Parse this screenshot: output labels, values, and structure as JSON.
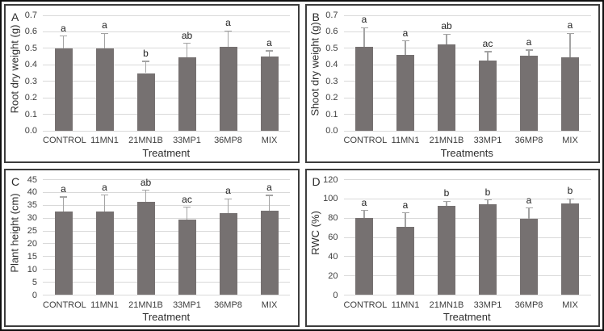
{
  "figure": {
    "description": "Four-panel bar chart figure comparing plant growth parameters across bacterial inoculation treatments",
    "panel_labels": [
      "A",
      "B",
      "C",
      "D"
    ]
  },
  "colors": {
    "bar": "#767171",
    "error": "#a3a3a3",
    "grid": "#d9d9d9",
    "tick_text": "#404040",
    "outer_border": "#101010",
    "panel_border": "#3d3d3d"
  },
  "chart_data": [
    {
      "type": "bar",
      "panel_label": "A",
      "title": "",
      "ylabel": "Root dry weight (g)",
      "xlabel": "Treatment",
      "categories": [
        "CONTROL",
        "11MN1",
        "21MN1B",
        "33MP1",
        "36MP8",
        "MIX"
      ],
      "values": [
        0.5,
        0.5,
        0.35,
        0.445,
        0.51,
        0.45
      ],
      "errors": [
        0.075,
        0.09,
        0.07,
        0.085,
        0.095,
        0.035
      ],
      "sig_letters": [
        "a",
        "a",
        "b",
        "ab",
        "a",
        "a"
      ],
      "ylim": [
        0,
        0.7
      ],
      "ytick_step": 0.1,
      "ytick_decimals": 1,
      "grid": true,
      "legend": "none"
    },
    {
      "type": "bar",
      "panel_label": "B",
      "title": "",
      "ylabel": "Shoot dry weight (g)",
      "xlabel": "Treatments",
      "categories": [
        "CONTROL",
        "11MN1",
        "21MN1B",
        "33MP1",
        "36MP8",
        "MIX"
      ],
      "values": [
        0.51,
        0.46,
        0.525,
        0.425,
        0.455,
        0.445
      ],
      "errors": [
        0.115,
        0.085,
        0.06,
        0.055,
        0.035,
        0.145
      ],
      "sig_letters": [
        "a",
        "a",
        "ab",
        "ac",
        "a",
        "a"
      ],
      "ylim": [
        0,
        0.7
      ],
      "ytick_step": 0.1,
      "ytick_decimals": 1,
      "grid": true,
      "legend": "none"
    },
    {
      "type": "bar",
      "panel_label": "C",
      "title": "",
      "ylabel": "Plant height (cm)",
      "xlabel": "Treatment",
      "categories": [
        "CONTROL",
        "11MN1",
        "21MN1B",
        "33MP1",
        "36MP8",
        "MIX"
      ],
      "values": [
        32.5,
        32.5,
        36.4,
        29.5,
        32.0,
        33.0
      ],
      "errors": [
        5.7,
        6.5,
        4.5,
        4.8,
        5.5,
        5.8
      ],
      "sig_letters": [
        "a",
        "a",
        "ab",
        "ac",
        "a",
        "a"
      ],
      "ylim": [
        0,
        45
      ],
      "ytick_step": 5,
      "ytick_decimals": 0,
      "grid": true,
      "legend": "none"
    },
    {
      "type": "bar",
      "panel_label": "D",
      "title": "",
      "ylabel": "RWC (%)",
      "xlabel": "Treatment",
      "categories": [
        "CONTROL",
        "11MN1",
        "21MN1B",
        "33MP1",
        "36MP8",
        "MIX"
      ],
      "values": [
        80,
        70.5,
        93,
        94.5,
        79.5,
        95
      ],
      "errors": [
        8,
        15,
        4.5,
        4.5,
        11,
        5
      ],
      "sig_letters": [
        "a",
        "a",
        "b",
        "b",
        "a",
        "b"
      ],
      "ylim": [
        0,
        120
      ],
      "ytick_step": 20,
      "ytick_decimals": 0,
      "grid": true,
      "legend": "none"
    }
  ]
}
